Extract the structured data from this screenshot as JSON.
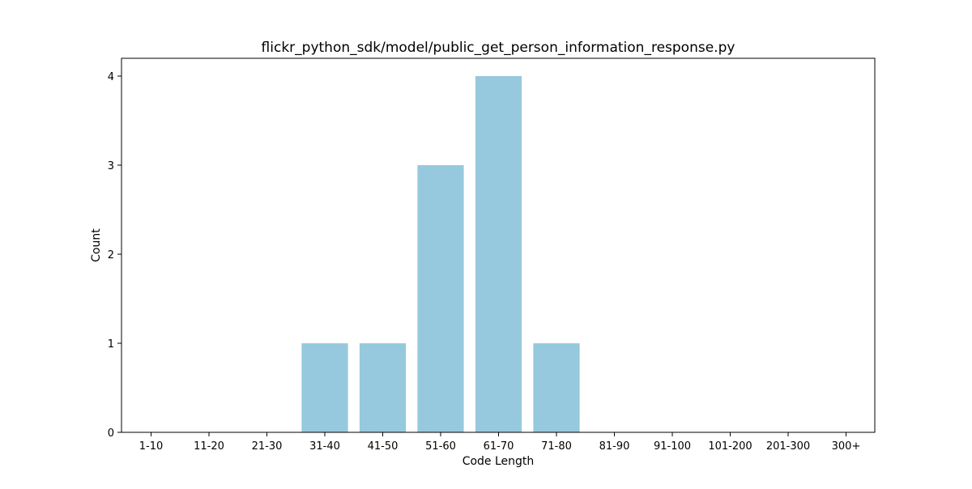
{
  "chart_data": {
    "type": "bar",
    "title": "flickr_python_sdk/model/public_get_person_information_response.py",
    "xlabel": "Code Length",
    "ylabel": "Count",
    "categories": [
      "1-10",
      "11-20",
      "21-30",
      "31-40",
      "41-50",
      "51-60",
      "61-70",
      "71-80",
      "81-90",
      "91-100",
      "101-200",
      "201-300",
      "300+"
    ],
    "values": [
      0,
      0,
      0,
      1,
      1,
      3,
      4,
      1,
      0,
      0,
      0,
      0,
      0
    ],
    "ylim": [
      0,
      4.2
    ],
    "yticks": [
      0,
      1,
      2,
      3,
      4
    ],
    "bar_color": "#96c9dd",
    "grid": false,
    "legend": "none"
  }
}
